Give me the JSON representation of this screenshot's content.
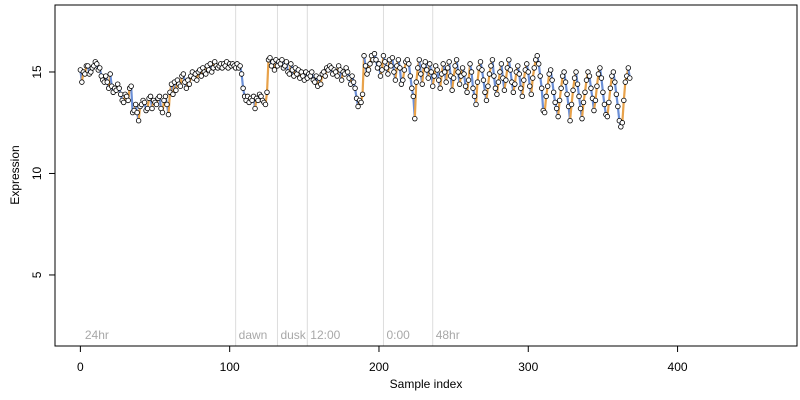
{
  "chart_data": {
    "type": "line",
    "xlabel": "Sample index",
    "ylabel": "Expression",
    "xlim": [
      -17,
      480
    ],
    "ylim": [
      1.5,
      18.3
    ],
    "x_ticks": [
      0,
      100,
      200,
      300,
      400
    ],
    "y_ticks": [
      5,
      10,
      15
    ],
    "grid": false,
    "phase_boundaries": [
      {
        "x": 104,
        "label": "dawn"
      },
      {
        "x": 132,
        "label": "dusk"
      },
      {
        "x": 152,
        "label": "12:00"
      },
      {
        "x": 203,
        "label": "0:00"
      },
      {
        "x": 236,
        "label": "48hr"
      }
    ],
    "start_label": {
      "x": 3,
      "label": "24hr"
    },
    "colors": {
      "line_default": "#9a9a9a",
      "line_up": "#e8a24a",
      "line_down": "#6b8fd6",
      "point_fill": "#ffffff",
      "point_stroke": "#000000",
      "phase_line": "#dcdcdc",
      "phase_text": "#a8a8a8"
    },
    "series": [
      {
        "x_start": 0,
        "x_step": 1,
        "values": [
          15.1,
          14.5,
          15.0,
          14.9,
          15.3,
          15.3,
          14.9,
          15.0,
          15.2,
          15.3,
          15.5,
          15.4,
          15.1,
          15.2,
          14.8,
          14.6,
          14.5,
          14.8,
          14.5,
          14.2,
          14.9,
          14.3,
          14.0,
          14.2,
          14.1,
          14.4,
          14.2,
          13.9,
          13.6,
          13.5,
          13.9,
          13.8,
          13.6,
          14.2,
          14.3,
          13.0,
          13.1,
          13.4,
          13.0,
          12.6,
          13.3,
          13.4,
          13.6,
          13.5,
          13.1,
          13.2,
          13.7,
          13.8,
          13.2,
          13.6,
          13.5,
          13.4,
          13.7,
          13.8,
          13.2,
          13.0,
          13.6,
          13.8,
          13.4,
          12.9,
          14.0,
          14.4,
          13.9,
          14.5,
          14.1,
          14.6,
          14.4,
          14.3,
          14.8,
          14.9,
          14.5,
          14.2,
          14.6,
          14.4,
          14.8,
          15.0,
          14.7,
          14.9,
          14.6,
          15.0,
          15.1,
          14.8,
          15.2,
          15.0,
          14.9,
          15.3,
          15.1,
          15.4,
          15.0,
          15.2,
          15.5,
          15.3,
          15.2,
          15.3,
          15.4,
          15.2,
          15.4,
          15.3,
          15.5,
          15.2,
          15.4,
          15.3,
          15.4,
          15.3,
          15.2,
          15.4,
          15.2,
          15.3,
          14.9,
          14.2,
          13.8,
          13.6,
          13.8,
          13.5,
          13.7,
          13.6,
          13.8,
          13.2,
          13.7,
          13.6,
          13.9,
          13.8,
          13.6,
          13.5,
          13.4,
          14.0,
          15.6,
          15.7,
          15.3,
          15.5,
          15.1,
          15.6,
          15.3,
          15.5,
          15.4,
          15.6,
          15.2,
          15.3,
          15.5,
          15.0,
          14.9,
          15.4,
          15.1,
          14.8,
          15.2,
          14.9,
          15.1,
          14.7,
          15.0,
          14.8,
          14.6,
          15.0,
          14.7,
          14.9,
          14.8,
          15.0,
          14.6,
          14.5,
          14.8,
          14.3,
          14.7,
          14.4,
          14.9,
          15.0,
          14.8,
          15.2,
          15.1,
          15.3,
          15.2,
          14.9,
          15.1,
          15.0,
          14.8,
          15.3,
          15.1,
          14.6,
          15.0,
          14.9,
          15.2,
          15.0,
          14.7,
          14.4,
          14.8,
          14.5,
          14.2,
          13.7,
          13.3,
          13.6,
          13.5,
          13.9,
          15.8,
          15.3,
          14.9,
          15.1,
          15.4,
          15.8,
          15.6,
          15.9,
          15.6,
          15.2,
          15.4,
          14.8,
          15.1,
          15.8,
          15.5,
          15.2,
          14.9,
          15.6,
          15.3,
          15.7,
          15.0,
          14.6,
          15.3,
          15.6,
          15.2,
          14.4,
          14.6,
          15.1,
          15.5,
          15.6,
          15.4,
          14.8,
          14.2,
          13.8,
          12.7,
          14.5,
          15.2,
          15.6,
          14.9,
          14.4,
          15.3,
          15.5,
          15.1,
          14.7,
          15.4,
          15.0,
          14.3,
          14.8,
          15.3,
          15.1,
          14.6,
          14.2,
          14.9,
          15.4,
          15.0,
          14.5,
          15.2,
          15.5,
          14.8,
          14.1,
          14.7,
          15.3,
          15.6,
          15.0,
          14.4,
          14.8,
          15.2,
          14.9,
          14.3,
          14.0,
          14.6,
          15.4,
          15.0,
          14.2,
          13.8,
          13.4,
          14.5,
          15.2,
          15.5,
          15.1,
          14.6,
          14.0,
          13.6,
          14.3,
          14.9,
          15.3,
          15.6,
          14.8,
          14.2,
          13.9,
          14.5,
          15.0,
          15.4,
          14.7,
          14.1,
          14.6,
          15.2,
          15.6,
          15.1,
          14.5,
          14.0,
          14.4,
          15.0,
          15.3,
          14.9,
          14.2,
          13.8,
          14.6,
          15.1,
          15.4,
          15.0,
          14.3,
          13.9,
          14.7,
          15.2,
          15.6,
          15.8,
          15.4,
          14.8,
          14.2,
          13.1,
          13.0,
          13.8,
          14.3,
          14.9,
          15.1,
          14.6,
          14.0,
          13.5,
          13.2,
          12.8,
          13.6,
          14.2,
          14.8,
          15.0,
          14.5,
          13.9,
          13.3,
          12.6,
          13.4,
          14.1,
          14.7,
          15.0,
          14.4,
          13.8,
          13.2,
          12.7,
          13.5,
          14.0,
          14.6,
          15.0,
          14.8,
          14.2,
          13.7,
          13.1,
          13.6,
          14.3,
          14.9,
          15.2,
          14.7,
          14.0,
          13.4,
          12.9,
          12.8,
          13.5,
          14.2,
          14.8,
          15.0,
          14.5,
          13.9,
          13.3,
          12.6,
          12.3,
          12.5,
          13.6,
          14.5,
          14.8,
          15.2,
          14.7
        ]
      }
    ]
  }
}
